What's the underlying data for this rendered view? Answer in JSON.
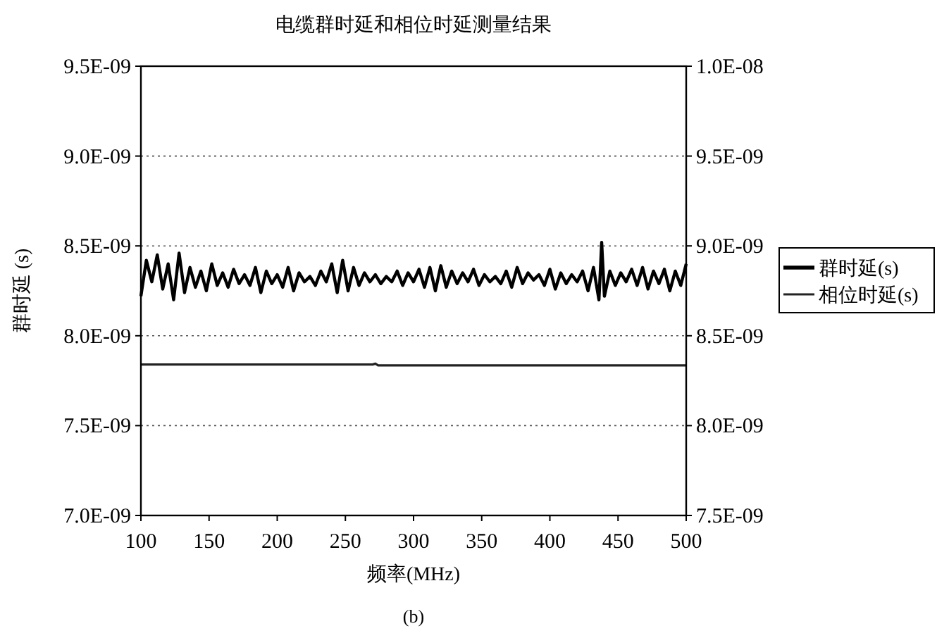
{
  "chart_data": {
    "type": "line",
    "title": "电缆群时延和相位时延测量结果",
    "xlabel": "频率(MHz)",
    "ylabel": "群时延 (s)",
    "xlim": [
      100,
      500
    ],
    "xticks": [
      100,
      150,
      200,
      250,
      300,
      350,
      400,
      450,
      500
    ],
    "ylim": [
      7e-09,
      9.5e-09
    ],
    "yticks": [
      {
        "value": 7e-09,
        "label": "7.0E-09"
      },
      {
        "value": 7.5e-09,
        "label": "7.5E-09"
      },
      {
        "value": 8e-09,
        "label": "8.0E-09"
      },
      {
        "value": 8.5e-09,
        "label": "8.5E-09"
      },
      {
        "value": 9e-09,
        "label": "9.0E-09"
      },
      {
        "value": 9.5e-09,
        "label": "9.5E-09"
      }
    ],
    "y2lim": [
      7.5e-09,
      1e-08
    ],
    "y2ticks": [
      {
        "value": 7.5e-09,
        "label": "7.5E-09"
      },
      {
        "value": 8e-09,
        "label": "8.0E-09"
      },
      {
        "value": 8.5e-09,
        "label": "8.5E-09"
      },
      {
        "value": 9e-09,
        "label": "9.0E-09"
      },
      {
        "value": 9.5e-09,
        "label": "9.5E-09"
      },
      {
        "value": 1e-08,
        "label": "1.0E-08"
      }
    ],
    "grid": "y",
    "legend": "right",
    "marker": "none",
    "line_style": "solid",
    "annotations": [
      "(b)"
    ],
    "series": [
      {
        "name": "群时延(s)",
        "color": "#000000",
        "x": [
          100,
          104,
          108,
          112,
          116,
          120,
          124,
          128,
          132,
          136,
          140,
          144,
          148,
          152,
          156,
          160,
          164,
          168,
          172,
          176,
          180,
          184,
          188,
          192,
          196,
          200,
          204,
          208,
          212,
          216,
          220,
          224,
          228,
          232,
          236,
          240,
          244,
          248,
          252,
          256,
          260,
          264,
          268,
          272,
          276,
          280,
          284,
          288,
          292,
          296,
          300,
          304,
          308,
          312,
          316,
          320,
          324,
          328,
          332,
          336,
          340,
          344,
          348,
          352,
          356,
          360,
          364,
          368,
          372,
          376,
          380,
          384,
          388,
          392,
          396,
          400,
          404,
          408,
          412,
          416,
          420,
          424,
          428,
          432,
          436,
          438,
          440,
          444,
          448,
          452,
          456,
          460,
          464,
          468,
          472,
          476,
          480,
          484,
          488,
          492,
          496,
          500
        ],
        "values": [
          8.22e-09,
          8.42e-09,
          8.3e-09,
          8.45e-09,
          8.26e-09,
          8.4e-09,
          8.2e-09,
          8.46e-09,
          8.24e-09,
          8.38e-09,
          8.27e-09,
          8.36e-09,
          8.25e-09,
          8.4e-09,
          8.28e-09,
          8.35e-09,
          8.27e-09,
          8.37e-09,
          8.29e-09,
          8.34e-09,
          8.28e-09,
          8.38e-09,
          8.24e-09,
          8.36e-09,
          8.29e-09,
          8.34e-09,
          8.27e-09,
          8.38e-09,
          8.25e-09,
          8.35e-09,
          8.3e-09,
          8.33e-09,
          8.28e-09,
          8.36e-09,
          8.3e-09,
          8.4e-09,
          8.24e-09,
          8.42e-09,
          8.25e-09,
          8.38e-09,
          8.28e-09,
          8.35e-09,
          8.3e-09,
          8.34e-09,
          8.29e-09,
          8.33e-09,
          8.3e-09,
          8.36e-09,
          8.28e-09,
          8.35e-09,
          8.3e-09,
          8.37e-09,
          8.27e-09,
          8.38e-09,
          8.25e-09,
          8.39e-09,
          8.27e-09,
          8.36e-09,
          8.29e-09,
          8.35e-09,
          8.3e-09,
          8.37e-09,
          8.28e-09,
          8.34e-09,
          8.3e-09,
          8.33e-09,
          8.29e-09,
          8.36e-09,
          8.27e-09,
          8.38e-09,
          8.29e-09,
          8.35e-09,
          8.31e-09,
          8.34e-09,
          8.28e-09,
          8.37e-09,
          8.26e-09,
          8.35e-09,
          8.29e-09,
          8.34e-09,
          8.3e-09,
          8.36e-09,
          8.25e-09,
          8.38e-09,
          8.2e-09,
          8.52e-09,
          8.22e-09,
          8.36e-09,
          8.28e-09,
          8.35e-09,
          8.3e-09,
          8.37e-09,
          8.28e-09,
          8.38e-09,
          8.26e-09,
          8.36e-09,
          8.29e-09,
          8.37e-09,
          8.25e-09,
          8.36e-09,
          8.28e-09,
          8.4e-09
        ]
      },
      {
        "name": "相位时延(s)",
        "color": "#222222",
        "axis": "y2",
        "x": [
          100,
          270,
          272,
          274,
          500
        ],
        "values": [
          8.34e-09,
          8.34e-09,
          8.345e-09,
          8.335e-09,
          8.335e-09
        ]
      }
    ]
  }
}
